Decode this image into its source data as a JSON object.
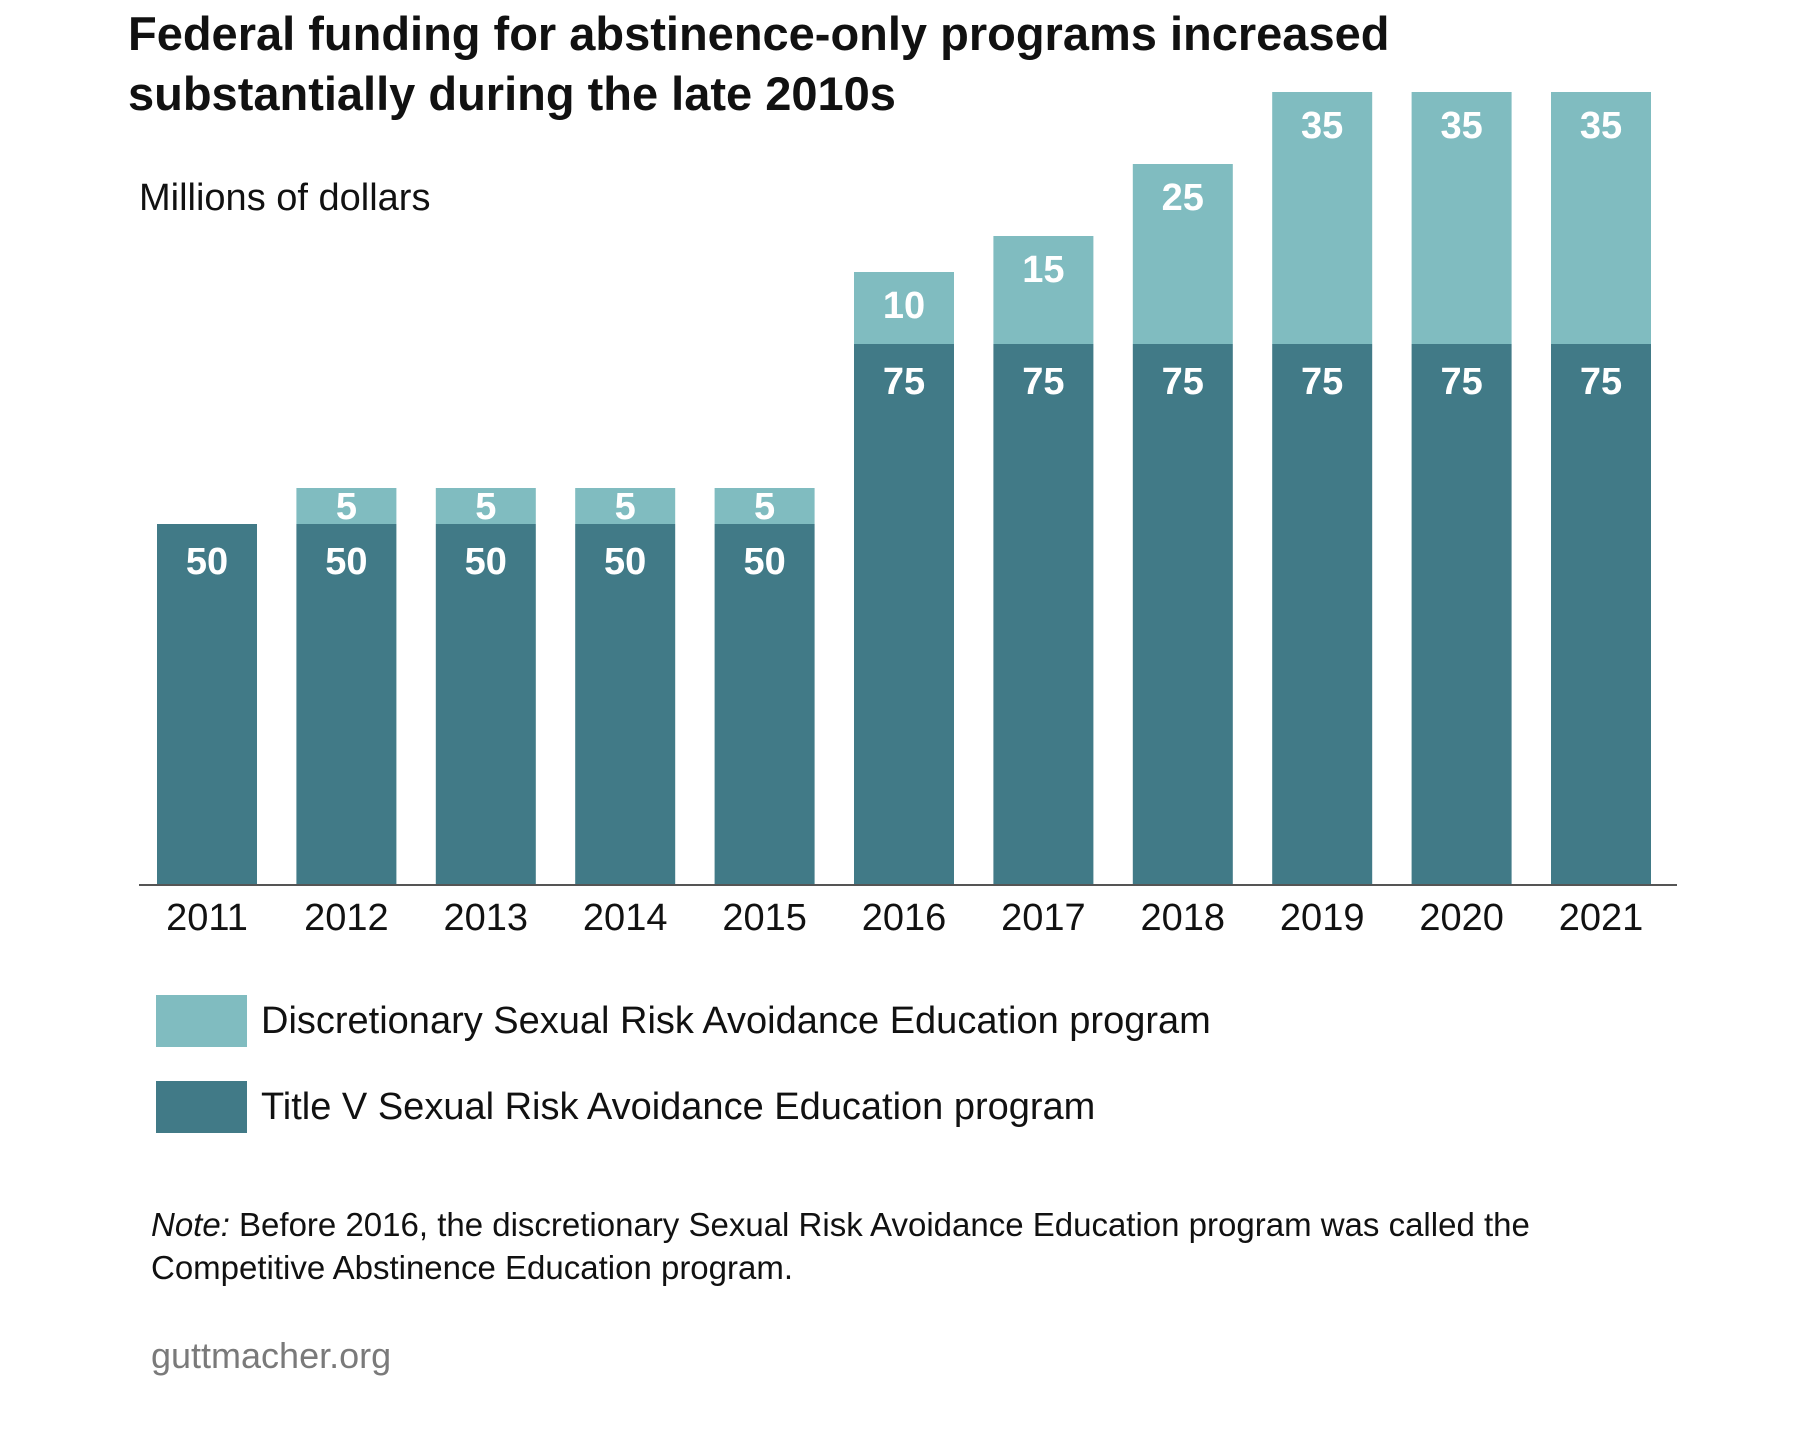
{
  "title_lines": [
    "Federal funding for abstinence-only programs increased",
    "substantially during the late 2010s"
  ],
  "chart_data": {
    "type": "bar",
    "stacked": true,
    "title": "Federal funding for abstinence-only programs increased substantially during the late 2010s",
    "ylabel": "Millions of dollars",
    "xlabel": "",
    "ylim": [
      0,
      110
    ],
    "grid": false,
    "categories": [
      "2011",
      "2012",
      "2013",
      "2014",
      "2015",
      "2016",
      "2017",
      "2018",
      "2019",
      "2020",
      "2021"
    ],
    "series": [
      {
        "name": "Title V Sexual Risk Avoidance Education program",
        "color": "#417a87",
        "values": [
          50,
          50,
          50,
          50,
          50,
          75,
          75,
          75,
          75,
          75,
          75
        ]
      },
      {
        "name": "Discretionary Sexual Risk Avoidance Education program",
        "color": "#80bcc0",
        "values": [
          0,
          5,
          5,
          5,
          5,
          10,
          15,
          25,
          35,
          35,
          35
        ]
      }
    ],
    "legend_order": [
      1,
      0
    ],
    "legend_position": "bottom-left"
  },
  "note": {
    "lead": "Note:",
    "lines": [
      " Before 2016, the discretionary Sexual Risk Avoidance Education program was called the",
      "Competitive Abstinence Education program."
    ]
  },
  "source": "guttmacher.org",
  "colors": {
    "axis": "#555555",
    "text": "#111111",
    "source_text": "#7a7a7a"
  }
}
